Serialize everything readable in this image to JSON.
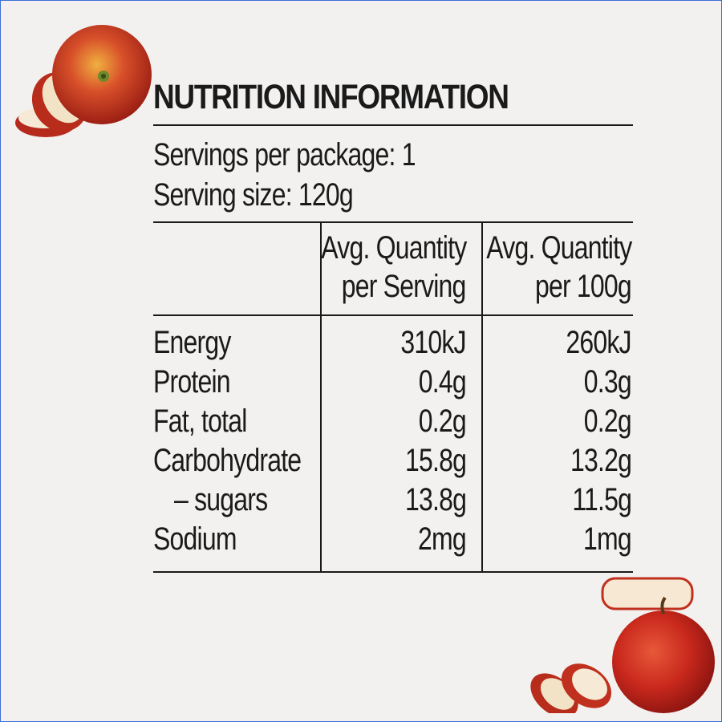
{
  "title": "NUTRITION INFORMATION",
  "servings_per_package": "Servings per package: 1",
  "serving_size": "Serving size: 120g",
  "columns": {
    "per_serving_line1": "Avg. Quantity",
    "per_serving_line2": "per Serving",
    "per_100g_line1": "Avg. Quantity",
    "per_100g_line2": "per 100g"
  },
  "rows": [
    {
      "label": "Energy",
      "per_serving": "310kJ",
      "per_100g": "260kJ"
    },
    {
      "label": "Protein",
      "per_serving": "0.4g",
      "per_100g": "0.3g"
    },
    {
      "label": "Fat, total",
      "per_serving": "0.2g",
      "per_100g": "0.2g"
    },
    {
      "label": "Carbohydrate",
      "per_serving": "15.8g",
      "per_100g": "13.2g"
    },
    {
      "label": "– sugars",
      "per_serving": "13.8g",
      "per_100g": "11.5g"
    },
    {
      "label": "Sodium",
      "per_serving": "2mg",
      "per_100g": "1mg"
    }
  ],
  "colors": {
    "background": "#f3f1ef",
    "ink": "#1a1a1a",
    "apple_red": "#c8321e",
    "apple_flesh": "#f4e4c8"
  }
}
